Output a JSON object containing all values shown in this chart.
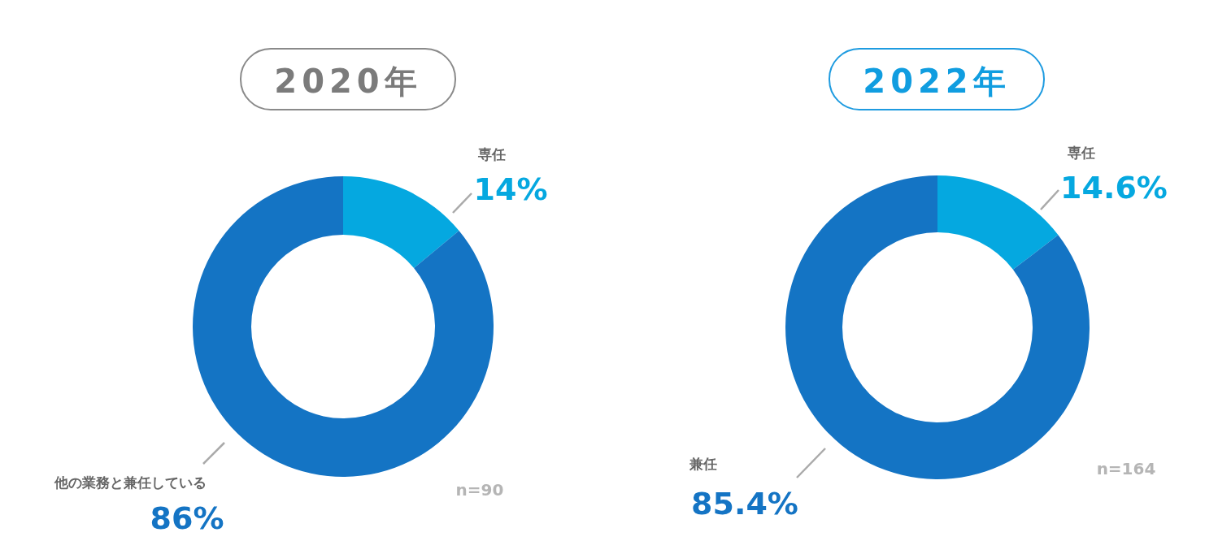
{
  "chart_data": [
    {
      "type": "donut",
      "title": "2020年",
      "categories": [
        "専任",
        "他の業務と兼任している"
      ],
      "values": [
        14,
        86
      ],
      "colors": [
        "#05a8e0",
        "#1474c4"
      ],
      "value_labels": [
        "14%",
        "86%"
      ],
      "annotations": [
        "n=90"
      ]
    },
    {
      "type": "donut",
      "title": "2022年",
      "categories": [
        "専任",
        "兼任"
      ],
      "values": [
        14.6,
        85.4
      ],
      "colors": [
        "#05a8e0",
        "#1474c4"
      ],
      "value_labels": [
        "14.6%",
        "85.4%"
      ],
      "annotations": [
        "n=164"
      ]
    }
  ]
}
